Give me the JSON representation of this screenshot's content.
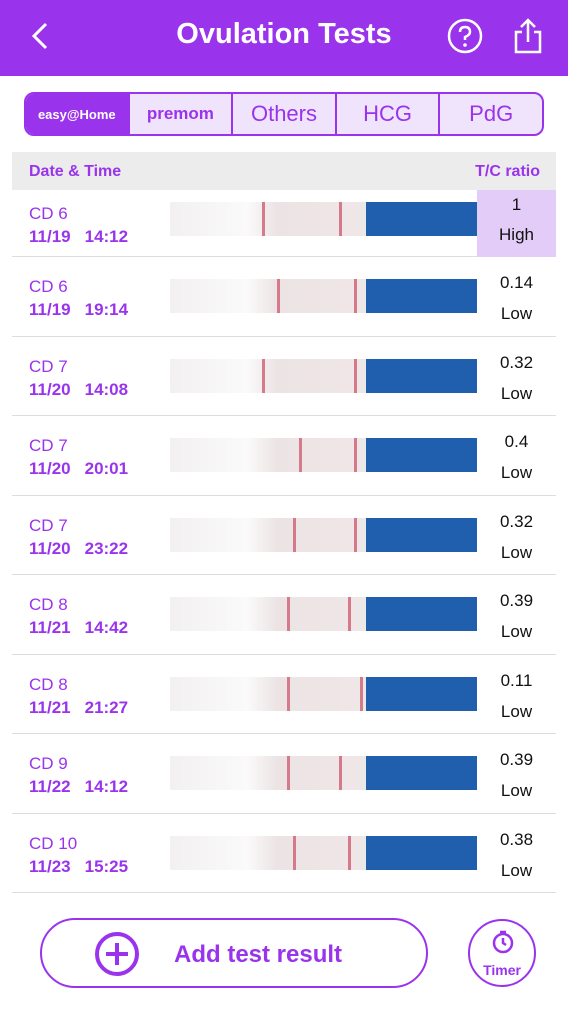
{
  "header": {
    "title": "Ovulation Tests"
  },
  "tabs": [
    "easy@Home",
    "premom",
    "Others",
    "HCG",
    "PdG"
  ],
  "table": {
    "columns": [
      "Date & Time",
      "T/C ratio"
    ],
    "rows": [
      {
        "cycle_day": "CD 6",
        "date": "11/19",
        "time": "14:12",
        "ratio": "1",
        "level": "High"
      },
      {
        "cycle_day": "CD 6",
        "date": "11/19",
        "time": "19:14",
        "ratio": "0.14",
        "level": "Low"
      },
      {
        "cycle_day": "CD 7",
        "date": "11/20",
        "time": "14:08",
        "ratio": "0.32",
        "level": "Low"
      },
      {
        "cycle_day": "CD 7",
        "date": "11/20",
        "time": "20:01",
        "ratio": "0.4",
        "level": "Low"
      },
      {
        "cycle_day": "CD 7",
        "date": "11/20",
        "time": "23:22",
        "ratio": "0.32",
        "level": "Low"
      },
      {
        "cycle_day": "CD 8",
        "date": "11/21",
        "time": "14:42",
        "ratio": "0.39",
        "level": "Low"
      },
      {
        "cycle_day": "CD 8",
        "date": "11/21",
        "time": "21:27",
        "ratio": "0.11",
        "level": "Low"
      },
      {
        "cycle_day": "CD 9",
        "date": "11/22",
        "time": "14:12",
        "ratio": "0.39",
        "level": "Low"
      },
      {
        "cycle_day": "CD 10",
        "date": "11/23",
        "time": "15:25",
        "ratio": "0.38",
        "level": "Low"
      }
    ]
  },
  "actions": {
    "add": "Add test result",
    "timer": "Timer"
  }
}
